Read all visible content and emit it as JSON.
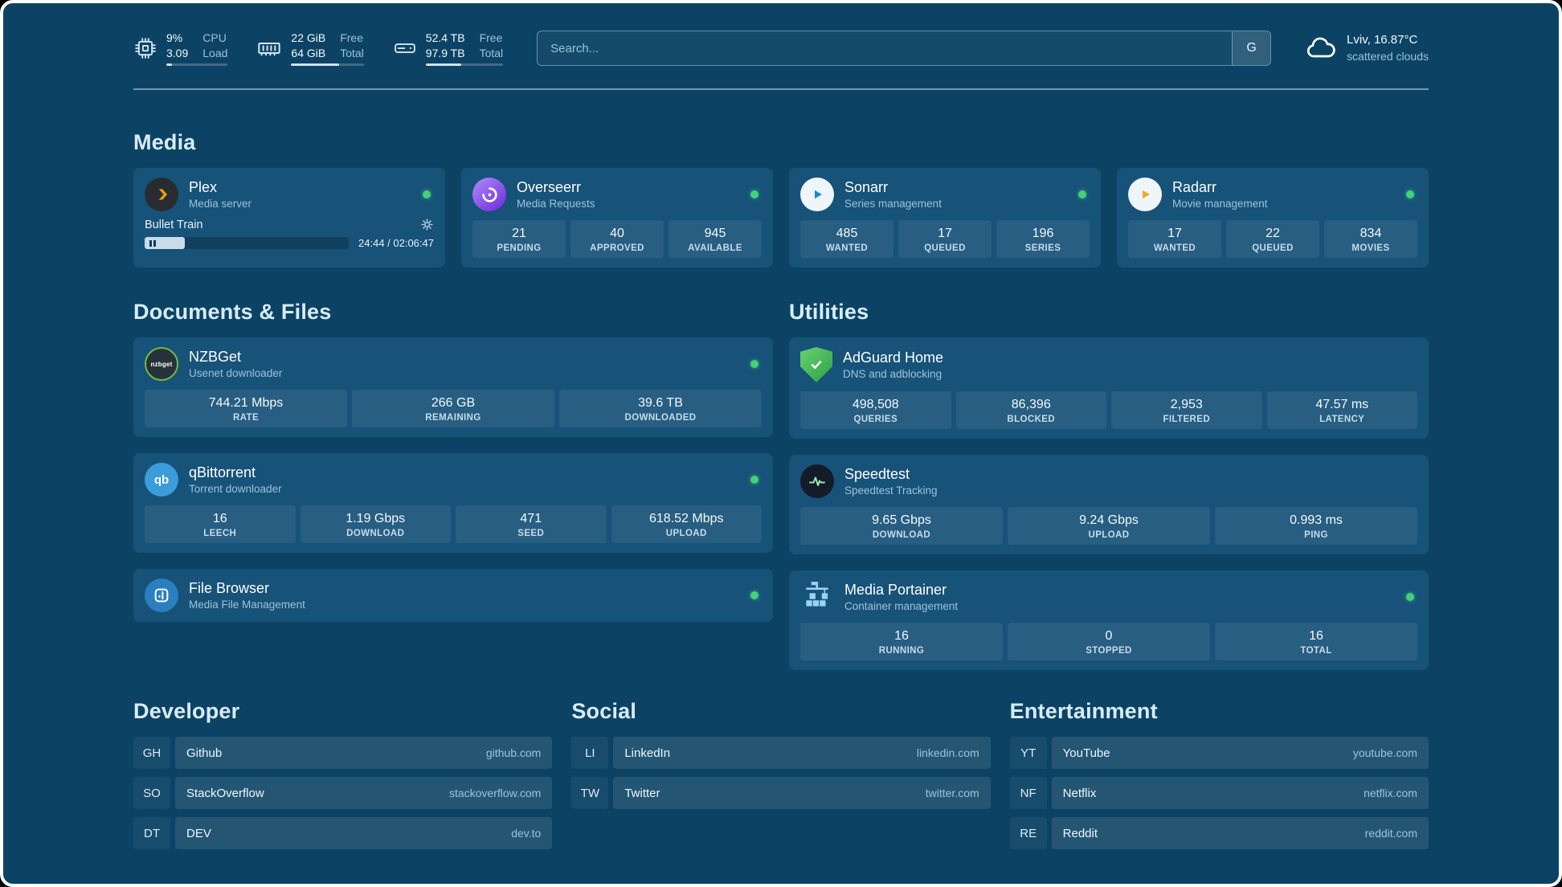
{
  "colors": {
    "outer_bg": "#000000",
    "frame_border": "#ffffff",
    "bg": "#0c4365",
    "card": "#175278",
    "tile": "rgba(255,255,255,0.07)",
    "text_primary": "#eef6fb",
    "text_secondary": "#9cc3db",
    "heading": "#d8ecf8",
    "divider": "rgba(220,238,248,0.5)",
    "status_green": "#43d17a",
    "progress_fill": "#cfe3f0"
  },
  "topbar": {
    "cpu": {
      "icon": "cpu-icon",
      "value_top": "9%",
      "value_bottom": "3.09",
      "label_top": "CPU",
      "label_bottom": "Load",
      "progress_percent": 9
    },
    "memory": {
      "icon": "memory-icon",
      "value_top": "22 GiB",
      "value_bottom": "64 GiB",
      "label_top": "Free",
      "label_bottom": "Total",
      "progress_percent": 66
    },
    "disk": {
      "icon": "disk-icon",
      "value_top": "52.4 TB",
      "value_bottom": "97.9 TB",
      "label_top": "Free",
      "label_bottom": "Total",
      "progress_percent": 46
    },
    "search": {
      "placeholder": "Search...",
      "provider_button": "G"
    },
    "weather": {
      "icon": "cloud-icon",
      "location": "Lviv, 16.87°C",
      "condition": "scattered clouds"
    }
  },
  "sections": {
    "media": {
      "title": "Media",
      "cards": {
        "plex": {
          "icon": "plex-icon",
          "title": "Plex",
          "subtitle": "Media server",
          "status": "online",
          "now_playing": {
            "title": "Bullet Train",
            "elapsed": "24:44",
            "duration": "02:06:47",
            "time_display": "24:44 / 02:06:47",
            "progress_percent": 19.5,
            "state": "paused"
          }
        },
        "overseerr": {
          "icon": "overseerr-icon",
          "title": "Overseerr",
          "subtitle": "Media Requests",
          "status": "online",
          "stats": [
            {
              "value": "21",
              "label": "PENDING"
            },
            {
              "value": "40",
              "label": "APPROVED"
            },
            {
              "value": "945",
              "label": "AVAILABLE"
            }
          ]
        },
        "sonarr": {
          "icon": "sonarr-icon",
          "title": "Sonarr",
          "subtitle": "Series management",
          "status": "online",
          "stats": [
            {
              "value": "485",
              "label": "WANTED"
            },
            {
              "value": "17",
              "label": "QUEUED"
            },
            {
              "value": "196",
              "label": "SERIES"
            }
          ]
        },
        "radarr": {
          "icon": "radarr-icon",
          "title": "Radarr",
          "subtitle": "Movie management",
          "status": "online",
          "stats": [
            {
              "value": "17",
              "label": "WANTED"
            },
            {
              "value": "22",
              "label": "QUEUED"
            },
            {
              "value": "834",
              "label": "MOVIES"
            }
          ]
        }
      }
    },
    "documents_files": {
      "title": "Documents & Files",
      "cards": {
        "nzbget": {
          "icon": "nzbget-icon",
          "icon_text": "nzbget",
          "title": "NZBGet",
          "subtitle": "Usenet downloader",
          "status": "online",
          "stats": [
            {
              "value": "744.21 Mbps",
              "label": "RATE"
            },
            {
              "value": "266 GB",
              "label": "REMAINING"
            },
            {
              "value": "39.6 TB",
              "label": "DOWNLOADED"
            }
          ]
        },
        "qbittorrent": {
          "icon": "qbittorrent-icon",
          "icon_text": "qb",
          "title": "qBittorrent",
          "subtitle": "Torrent downloader",
          "status": "online",
          "stats": [
            {
              "value": "16",
              "label": "LEECH"
            },
            {
              "value": "1.19 Gbps",
              "label": "DOWNLOAD"
            },
            {
              "value": "471",
              "label": "SEED"
            },
            {
              "value": "618.52 Mbps",
              "label": "UPLOAD"
            }
          ]
        },
        "filebrowser": {
          "icon": "filebrowser-icon",
          "title": "File Browser",
          "subtitle": "Media File Management",
          "status": "online",
          "stats": []
        }
      }
    },
    "utilities": {
      "title": "Utilities",
      "cards": {
        "adguard": {
          "icon": "adguard-icon",
          "title": "AdGuard Home",
          "subtitle": "DNS and adblocking",
          "stats": [
            {
              "value": "498,508",
              "label": "QUERIES"
            },
            {
              "value": "86,396",
              "label": "BLOCKED"
            },
            {
              "value": "2,953",
              "label": "FILTERED"
            },
            {
              "value": "47.57 ms",
              "label": "LATENCY"
            }
          ]
        },
        "speedtest": {
          "icon": "speedtest-icon",
          "title": "Speedtest",
          "subtitle": "Speedtest Tracking",
          "stats": [
            {
              "value": "9.65 Gbps",
              "label": "DOWNLOAD"
            },
            {
              "value": "9.24 Gbps",
              "label": "UPLOAD"
            },
            {
              "value": "0.993 ms",
              "label": "PING"
            }
          ]
        },
        "portainer": {
          "icon": "portainer-icon",
          "title": "Media Portainer",
          "subtitle": "Container management",
          "status": "online",
          "stats": [
            {
              "value": "16",
              "label": "RUNNING"
            },
            {
              "value": "0",
              "label": "STOPPED"
            },
            {
              "value": "16",
              "label": "TOTAL"
            }
          ]
        }
      }
    },
    "bookmarks": {
      "developer": {
        "title": "Developer",
        "items": [
          {
            "abbr": "GH",
            "name": "Github",
            "url": "github.com"
          },
          {
            "abbr": "SO",
            "name": "StackOverflow",
            "url": "stackoverflow.com"
          },
          {
            "abbr": "DT",
            "name": "DEV",
            "url": "dev.to"
          }
        ]
      },
      "social": {
        "title": "Social",
        "items": [
          {
            "abbr": "LI",
            "name": "LinkedIn",
            "url": "linkedin.com"
          },
          {
            "abbr": "TW",
            "name": "Twitter",
            "url": "twitter.com"
          }
        ]
      },
      "entertainment": {
        "title": "Entertainment",
        "items": [
          {
            "abbr": "YT",
            "name": "YouTube",
            "url": "youtube.com"
          },
          {
            "abbr": "NF",
            "name": "Netflix",
            "url": "netflix.com"
          },
          {
            "abbr": "RE",
            "name": "Reddit",
            "url": "reddit.com"
          }
        ]
      }
    }
  }
}
